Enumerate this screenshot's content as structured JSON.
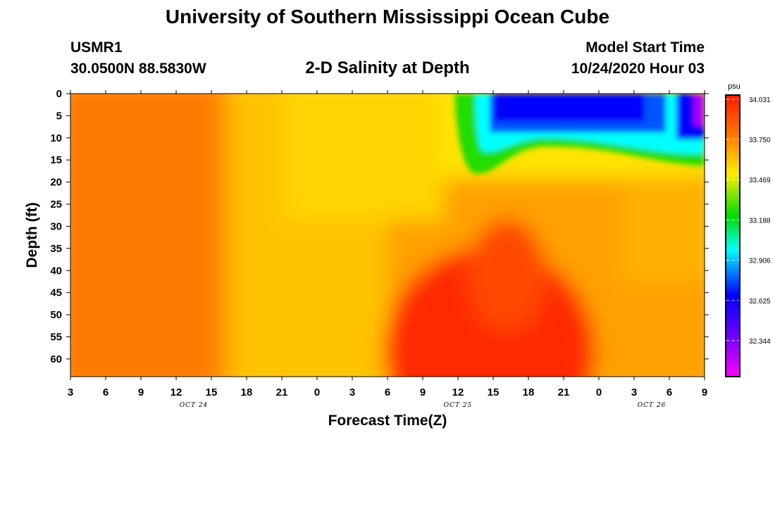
{
  "header": {
    "title": "University of Southern Mississippi Ocean Cube",
    "station": "USMR1",
    "coordinates": "30.0500N 88.5830W",
    "subtitle": "2-D Salinity at Depth",
    "model_start_label": "Model Start Time",
    "model_start_value": "10/24/2020 Hour 03"
  },
  "footer": {
    "title": "University of Southern Mississippi Ocean Cube"
  },
  "chart_data": {
    "type": "heatmap",
    "title": "2-D Salinity at Depth",
    "xlabel": "Forecast Time(Z)",
    "ylabel": "Depth (ft)",
    "x_ticks": [
      "3",
      "6",
      "9",
      "12",
      "15",
      "18",
      "21",
      "0",
      "3",
      "6",
      "9",
      "12",
      "15",
      "18",
      "21",
      "0",
      "3",
      "6",
      "9"
    ],
    "x_range_hours": [
      0,
      54
    ],
    "date_labels": [
      {
        "text": "OCT 24",
        "hour": 10.5
      },
      {
        "text": "OCT 25",
        "hour": 33
      },
      {
        "text": "OCT 26",
        "hour": 49.5
      }
    ],
    "y_ticks": [
      0,
      5,
      10,
      15,
      20,
      25,
      30,
      35,
      40,
      45,
      50,
      55,
      60
    ],
    "y_range": [
      0,
      64
    ],
    "colorbar": {
      "unit": "psu",
      "min": 32.063,
      "max": 34.031,
      "ticks": [
        "34.031",
        "33.750",
        "33.469",
        "33.188",
        "32.906",
        "32.625",
        "32.344"
      ]
    },
    "colors": {
      "high": "#ff1a00",
      "mid_high": "#ff9900",
      "mid": "#ffee00",
      "green": "#00dd00",
      "cyan": "#00ffff",
      "blue": "#0000ff",
      "low": "#ff00ff"
    }
  }
}
